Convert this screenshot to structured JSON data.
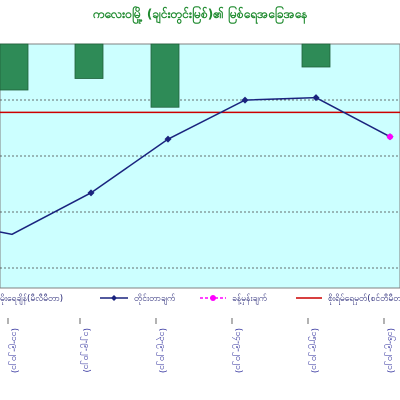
{
  "title": "ကလေးဝမြို့ (ချင်းတွင်းမြစ်)၏ မြစ်ရေအခြေအနေ",
  "chart_data": {
    "type": "bar+line",
    "categories": [
      "(၁၁-၉-၂၀၂၁)",
      "(၁၂-၉-၂၀၂၁)",
      "(၁၃-၉-၂၀၂၁)",
      "(၁၄-၉-၂၀၂၁)",
      "(၁၅-၉-၂၀၂၁)",
      "(၁၆-၉-၂၀၂၁)"
    ],
    "series": [
      {
        "name": "မိုးရေချိန်(မီလီမီတာ)",
        "kind": "bar",
        "color": "#2e8b57",
        "values": [
          40,
          30,
          55,
          0,
          20,
          0
        ]
      },
      {
        "name": "တိုင်းတာချက်",
        "kind": "line",
        "color": "#1a237e",
        "values": [
          0.22,
          0.39,
          0.61,
          0.77,
          0.78,
          0.62
        ]
      },
      {
        "name": "ခန့်မှန်းချက်",
        "kind": "line-dashed",
        "color": "#ff00ff",
        "values": [
          null,
          null,
          null,
          null,
          null,
          0.62
        ]
      },
      {
        "name": "စိုးရိမ်ရေမှတ်(စင်တီမီတာ)",
        "kind": "hline",
        "color": "#cc0000",
        "value": 0.72
      }
    ],
    "plot_background": "#ccffff",
    "grid": true,
    "legend_position": "bottom"
  }
}
